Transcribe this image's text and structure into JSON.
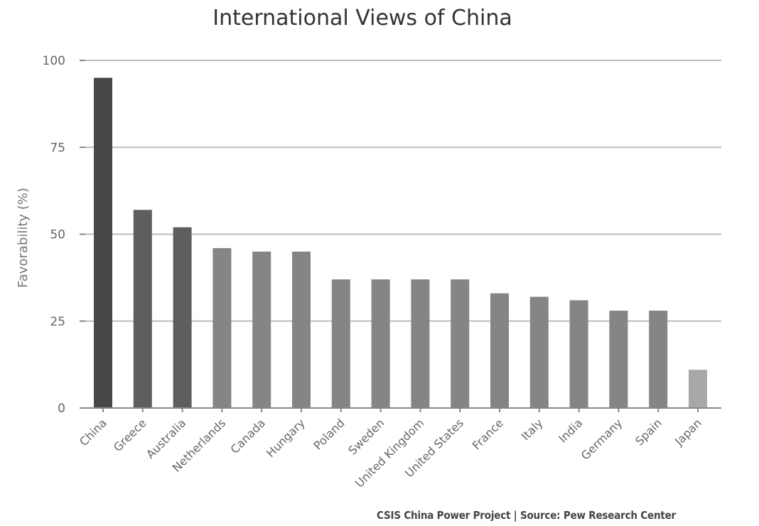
{
  "chart_data": {
    "type": "bar",
    "title": "International Views of China",
    "xlabel": "",
    "ylabel": "Favorability (%)",
    "ylim": [
      0,
      100
    ],
    "yticks": [
      0,
      25,
      50,
      75,
      100
    ],
    "grid": true,
    "categories": [
      "China",
      "Greece",
      "Australia",
      "Netherlands",
      "Canada",
      "Hungary",
      "Poland",
      "Sweden",
      "United Kingdom",
      "United States",
      "France",
      "Italy",
      "India",
      "Germany",
      "Spain",
      "Japan"
    ],
    "values": [
      95,
      57,
      52,
      46,
      45,
      45,
      37,
      37,
      37,
      37,
      33,
      32,
      31,
      28,
      28,
      11
    ],
    "bar_colors": [
      "#474747",
      "#5e5e5e",
      "#5e5e5e",
      "#858585",
      "#858585",
      "#858585",
      "#858585",
      "#858585",
      "#858585",
      "#858585",
      "#858585",
      "#858585",
      "#858585",
      "#858585",
      "#858585",
      "#a8a8a8"
    ],
    "colors": {
      "grid": "#bdbdbd",
      "axis": "#888888",
      "tick_text": "#666666",
      "title_text": "#333333"
    }
  },
  "credit": "CSIS China Power Project | Source: Pew Research Center"
}
